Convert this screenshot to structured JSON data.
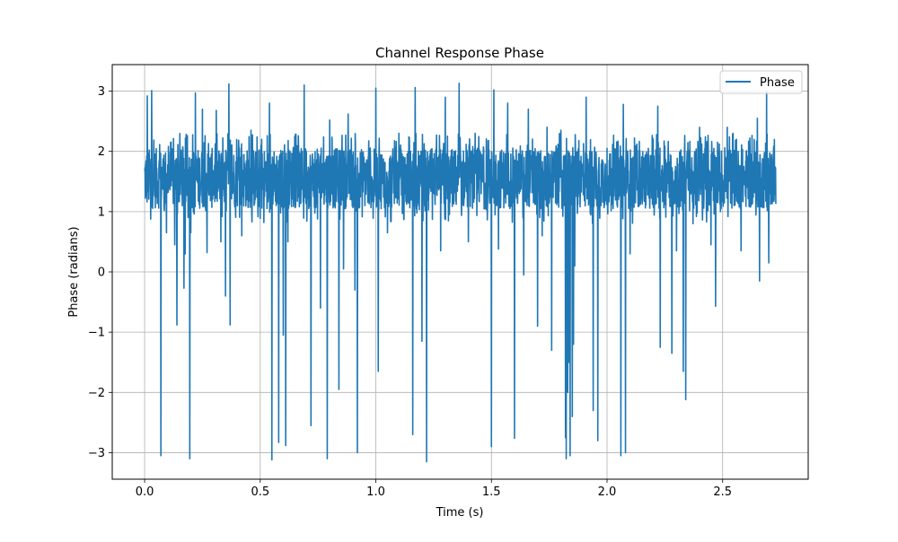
{
  "chart_data": {
    "type": "line",
    "title": "Channel Response Phase",
    "xlabel": "Time (s)",
    "ylabel": "Phase (radians)",
    "xlim": [
      -0.14,
      2.87
    ],
    "ylim": [
      -3.44,
      3.44
    ],
    "x_ticks": [
      0.0,
      0.5,
      1.0,
      1.5,
      2.0,
      2.5
    ],
    "x_tick_labels": [
      "0.0",
      "0.5",
      "1.0",
      "1.5",
      "2.0",
      "2.5"
    ],
    "y_ticks": [
      -3,
      -2,
      -1,
      0,
      1,
      2,
      3
    ],
    "y_tick_labels": [
      "−3",
      "−2",
      "−1",
      "0",
      "1",
      "2",
      "3"
    ],
    "grid": true,
    "legend_position": "upper right",
    "series": [
      {
        "name": "Phase",
        "color": "#1f77b4",
        "x_range": [
          0.0,
          2.73
        ],
        "baseline_band": [
          1.05,
          2.05
        ],
        "typical_upper_spikes": 2.3,
        "spikes": [
          {
            "x": 0.012,
            "y": 2.92
          },
          {
            "x": 0.03,
            "y": 3.01
          },
          {
            "x": 0.07,
            "y": -3.05
          },
          {
            "x": 0.095,
            "y": 0.65
          },
          {
            "x": 0.13,
            "y": 0.45
          },
          {
            "x": 0.14,
            "y": -0.88
          },
          {
            "x": 0.17,
            "y": -0.27
          },
          {
            "x": 0.175,
            "y": 0.3
          },
          {
            "x": 0.195,
            "y": -3.1
          },
          {
            "x": 0.2,
            "y": 0.65
          },
          {
            "x": 0.22,
            "y": 2.97
          },
          {
            "x": 0.25,
            "y": 2.7
          },
          {
            "x": 0.27,
            "y": 0.32
          },
          {
            "x": 0.31,
            "y": 2.68
          },
          {
            "x": 0.33,
            "y": 0.5
          },
          {
            "x": 0.35,
            "y": -0.4
          },
          {
            "x": 0.365,
            "y": 3.12
          },
          {
            "x": 0.37,
            "y": -0.88
          },
          {
            "x": 0.42,
            "y": 0.6
          },
          {
            "x": 0.46,
            "y": 2.35
          },
          {
            "x": 0.55,
            "y": -3.12
          },
          {
            "x": 0.54,
            "y": 2.8
          },
          {
            "x": 0.58,
            "y": -2.83
          },
          {
            "x": 0.6,
            "y": -1.05
          },
          {
            "x": 0.61,
            "y": -2.88
          },
          {
            "x": 0.62,
            "y": 0.5
          },
          {
            "x": 0.69,
            "y": 3.1
          },
          {
            "x": 0.72,
            "y": -2.55
          },
          {
            "x": 0.76,
            "y": -0.6
          },
          {
            "x": 0.79,
            "y": -3.1
          },
          {
            "x": 0.8,
            "y": 2.52
          },
          {
            "x": 0.84,
            "y": -1.95
          },
          {
            "x": 0.86,
            "y": 0.05
          },
          {
            "x": 0.88,
            "y": 2.62
          },
          {
            "x": 0.92,
            "y": -3.0
          },
          {
            "x": 0.91,
            "y": -0.3
          },
          {
            "x": 1.0,
            "y": 3.05
          },
          {
            "x": 1.01,
            "y": -1.65
          },
          {
            "x": 1.05,
            "y": 0.65
          },
          {
            "x": 1.1,
            "y": 2.3
          },
          {
            "x": 1.16,
            "y": -2.7
          },
          {
            "x": 1.17,
            "y": 3.06
          },
          {
            "x": 1.2,
            "y": -1.15
          },
          {
            "x": 1.22,
            "y": -3.15
          },
          {
            "x": 1.28,
            "y": 0.35
          },
          {
            "x": 1.3,
            "y": 2.9
          },
          {
            "x": 1.36,
            "y": 3.13
          },
          {
            "x": 1.4,
            "y": 0.5
          },
          {
            "x": 1.43,
            "y": 2.3
          },
          {
            "x": 1.5,
            "y": -2.9
          },
          {
            "x": 1.51,
            "y": 3.02
          },
          {
            "x": 1.53,
            "y": 0.38
          },
          {
            "x": 1.57,
            "y": 2.8
          },
          {
            "x": 1.6,
            "y": -2.76
          },
          {
            "x": 1.64,
            "y": -0.05
          },
          {
            "x": 1.66,
            "y": 2.7
          },
          {
            "x": 1.7,
            "y": -0.9
          },
          {
            "x": 1.72,
            "y": 0.6
          },
          {
            "x": 1.74,
            "y": 2.4
          },
          {
            "x": 1.76,
            "y": -1.3
          },
          {
            "x": 1.8,
            "y": 2.35
          },
          {
            "x": 1.82,
            "y": -2.75
          },
          {
            "x": 1.823,
            "y": -3.1
          },
          {
            "x": 1.83,
            "y": -2.0
          },
          {
            "x": 1.835,
            "y": -1.5
          },
          {
            "x": 1.84,
            "y": -3.05
          },
          {
            "x": 1.85,
            "y": -2.4
          },
          {
            "x": 1.855,
            "y": -1.2
          },
          {
            "x": 1.86,
            "y": 0.1
          },
          {
            "x": 1.91,
            "y": 2.9
          },
          {
            "x": 1.94,
            "y": -2.3
          },
          {
            "x": 1.96,
            "y": -2.8
          },
          {
            "x": 2.0,
            "y": 2.05
          },
          {
            "x": 2.06,
            "y": -3.05
          },
          {
            "x": 2.07,
            "y": 2.78
          },
          {
            "x": 2.08,
            "y": -3.0
          },
          {
            "x": 2.1,
            "y": 0.3
          },
          {
            "x": 2.2,
            "y": 2.2
          },
          {
            "x": 2.22,
            "y": 2.75
          },
          {
            "x": 2.23,
            "y": -1.25
          },
          {
            "x": 2.28,
            "y": -1.35
          },
          {
            "x": 2.3,
            "y": 0.35
          },
          {
            "x": 2.33,
            "y": -1.65
          },
          {
            "x": 2.34,
            "y": -2.12
          },
          {
            "x": 2.4,
            "y": 2.4
          },
          {
            "x": 2.45,
            "y": 0.45
          },
          {
            "x": 2.47,
            "y": -0.57
          },
          {
            "x": 2.52,
            "y": 2.4
          },
          {
            "x": 2.56,
            "y": 2.2
          },
          {
            "x": 2.58,
            "y": 0.35
          },
          {
            "x": 2.65,
            "y": 2.55
          },
          {
            "x": 2.66,
            "y": -0.15
          },
          {
            "x": 2.69,
            "y": 3.0
          },
          {
            "x": 2.7,
            "y": 0.15
          }
        ]
      }
    ]
  }
}
